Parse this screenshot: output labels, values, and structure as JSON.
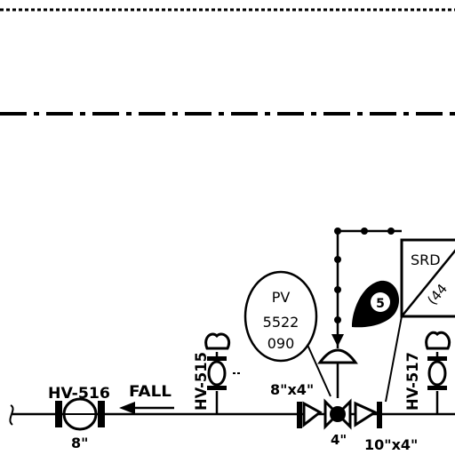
{
  "labels": {
    "pv_letters": "PV",
    "pv_number": "5522",
    "pv_suffix": "090",
    "srd": "SRD",
    "srd_sub": "(44",
    "hv516": "HV-516",
    "hv516_size": "8\"",
    "hv515": "HV-515",
    "hv517": "HV-517",
    "fall": "FALL",
    "reducer_upper": "8\"x4\"",
    "reducer_lower_left": "4\"",
    "reducer_lower_right": "10\"x4\"",
    "badge_number": "5"
  },
  "colors": {
    "line": "#000000",
    "background": "#ffffff",
    "badge_fill": "#000000",
    "badge_text": "#ffffff"
  }
}
